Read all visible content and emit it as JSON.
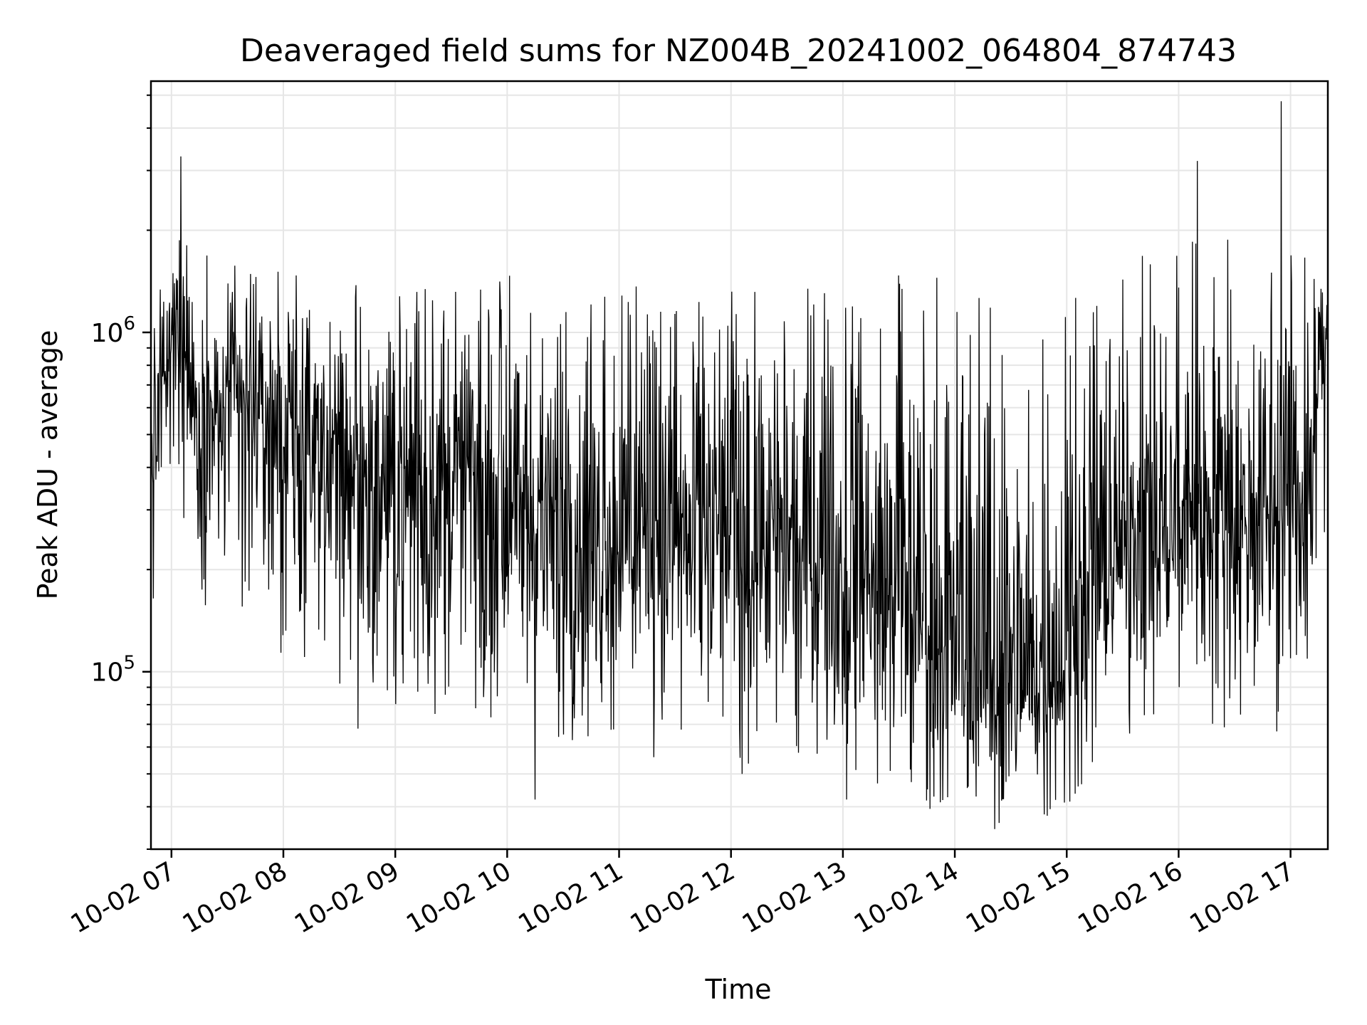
{
  "chart_data": {
    "type": "line",
    "title": "Deaveraged field sums for NZ004B_20241002_064804_874743",
    "xlabel": "Time",
    "ylabel": "Peak ADU - average",
    "x_scale": "time",
    "y_scale": "log",
    "xlim": [
      "10-02 06:49",
      "10-02 17:20"
    ],
    "ylim": [
      30000,
      5500000
    ],
    "grid": true,
    "x_ticks": [
      "10-02 07",
      "10-02 08",
      "10-02 09",
      "10-02 10",
      "10-02 11",
      "10-02 12",
      "10-02 13",
      "10-02 14",
      "10-02 15",
      "10-02 16",
      "10-02 17"
    ],
    "y_ticks": [
      {
        "value": 100000,
        "base": "10",
        "exp": "5"
      },
      {
        "value": 1000000,
        "base": "10",
        "exp": "6"
      }
    ],
    "series": [
      {
        "color": "#000000",
        "x": [
          "06:49",
          "06:55",
          "07:00",
          "07:05",
          "07:10",
          "07:15",
          "07:20",
          "07:25",
          "07:30",
          "07:40",
          "07:50",
          "08:00",
          "08:10",
          "08:20",
          "08:30",
          "08:40",
          "08:50",
          "09:00",
          "09:10",
          "09:20",
          "09:30",
          "09:40",
          "09:50",
          "10:00",
          "10:10",
          "10:20",
          "10:30",
          "10:40",
          "10:50",
          "11:00",
          "11:10",
          "11:20",
          "11:30",
          "11:40",
          "11:50",
          "12:00",
          "12:10",
          "12:20",
          "12:30",
          "12:40",
          "12:50",
          "13:00",
          "13:10",
          "13:20",
          "13:30",
          "13:40",
          "13:50",
          "14:00",
          "14:10",
          "14:20",
          "14:30",
          "14:40",
          "14:50",
          "15:00",
          "15:10",
          "15:20",
          "15:30",
          "15:40",
          "15:50",
          "16:00",
          "16:10",
          "16:20",
          "16:30",
          "16:40",
          "16:50",
          "16:55",
          "17:00",
          "17:05",
          "17:10",
          "17:15",
          "17:20"
        ],
        "y": [
          380000,
          650000,
          900000,
          1200000,
          700000,
          550000,
          600000,
          520000,
          580000,
          560000,
          540000,
          500000,
          480000,
          460000,
          440000,
          420000,
          400000,
          380000,
          360000,
          340000,
          330000,
          320000,
          310000,
          300000,
          290000,
          285000,
          280000,
          275000,
          270000,
          265000,
          260000,
          255000,
          250000,
          245000,
          240000,
          240000,
          235000,
          230000,
          225000,
          220000,
          210000,
          200000,
          190000,
          180000,
          170000,
          150000,
          130000,
          110000,
          100000,
          95000,
          90000,
          90000,
          95000,
          110000,
          150000,
          200000,
          240000,
          260000,
          260000,
          270000,
          300000,
          320000,
          310000,
          300000,
          290000,
          320000,
          350000,
          300000,
          380000,
          700000,
          1100000
        ],
        "band_low": [
          140000,
          200000,
          250000,
          300000,
          200000,
          150000,
          150000,
          140000,
          150000,
          130000,
          120000,
          110000,
          100000,
          95000,
          90000,
          85000,
          80000,
          75000,
          70000,
          68000,
          66000,
          64000,
          62000,
          60000,
          60000,
          58000,
          58000,
          57000,
          57000,
          56000,
          56000,
          55000,
          55000,
          54000,
          54000,
          54000,
          53000,
          52000,
          52000,
          51000,
          50000,
          48000,
          46000,
          44000,
          42000,
          40000,
          38000,
          36000,
          35000,
          34000,
          33000,
          33000,
          34000,
          38000,
          48000,
          58000,
          62000,
          62000,
          62000,
          63000,
          64000,
          66000,
          65000,
          64000,
          63000,
          64000,
          65000,
          64000,
          70000,
          140000,
          300000
        ],
        "band_high": [
          1500000,
          1400000,
          1600000,
          3300000,
          2000000,
          1800000,
          1700000,
          1600000,
          1800000,
          1700000,
          1700000,
          1600000,
          1600000,
          1500000,
          1500000,
          1500000,
          1500000,
          1400000,
          1400000,
          1400000,
          1400000,
          1400000,
          1400000,
          1500000,
          1400000,
          1400000,
          1400000,
          1400000,
          1400000,
          1400000,
          1400000,
          1400000,
          1400000,
          1450000,
          1400000,
          1400000,
          1400000,
          1400000,
          1400000,
          1450000,
          1400000,
          1400000,
          1400000,
          1400000,
          1500000,
          1500000,
          1500000,
          1400000,
          1300000,
          1200000,
          1100000,
          1100000,
          1200000,
          1300000,
          1400000,
          1600000,
          1700000,
          1700000,
          1600000,
          1700000,
          2200000,
          2400000,
          2000000,
          2000000,
          2300000,
          3500000,
          2500000,
          2000000,
          1600000,
          1500000,
          1600000
        ]
      }
    ],
    "peaks": [
      {
        "x": "07:05",
        "y": 3300000
      },
      {
        "x": "08:40",
        "y": 68000
      },
      {
        "x": "10:15",
        "y": 42000
      },
      {
        "x": "12:06",
        "y": 50000
      },
      {
        "x": "13:02",
        "y": 42000
      },
      {
        "x": "14:48",
        "y": 38000
      },
      {
        "x": "16:10",
        "y": 3200000
      },
      {
        "x": "16:55",
        "y": 4800000
      }
    ]
  }
}
